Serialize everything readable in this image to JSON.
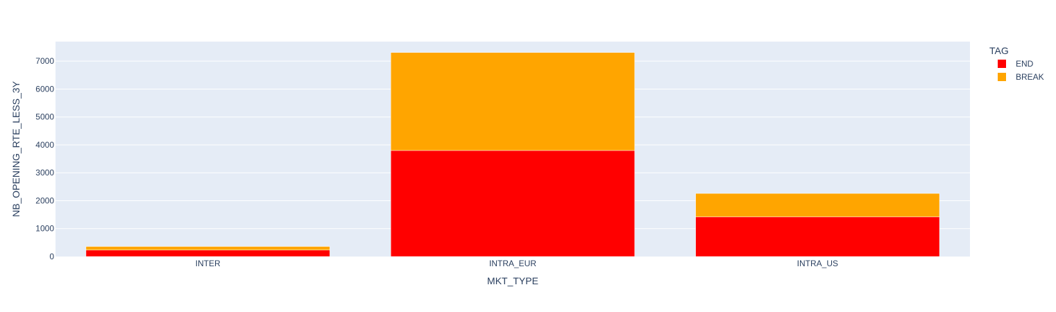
{
  "chart_data": {
    "type": "bar",
    "barmode": "stack",
    "title": "",
    "xlabel": "MKT_TYPE",
    "ylabel": "NB_OPENING_RTE_LESS_3Y",
    "categories": [
      "INTER",
      "INTRA_EUR",
      "INTRA_US"
    ],
    "ylim": [
      0,
      7700
    ],
    "yticks": [
      0,
      1000,
      2000,
      3000,
      4000,
      5000,
      6000,
      7000
    ],
    "grid": true,
    "legend": {
      "title": "TAG",
      "placement": "top-right outside"
    },
    "series": [
      {
        "name": "END",
        "color": "#ff0000",
        "values": [
          230,
          3800,
          1420
        ]
      },
      {
        "name": "BREAK",
        "color": "#ffa500",
        "values": [
          130,
          3510,
          840
        ]
      }
    ],
    "colors": {
      "plot_background": "#e5ecf6",
      "grid": "#ffffff",
      "text": "#2a3f5f"
    }
  }
}
